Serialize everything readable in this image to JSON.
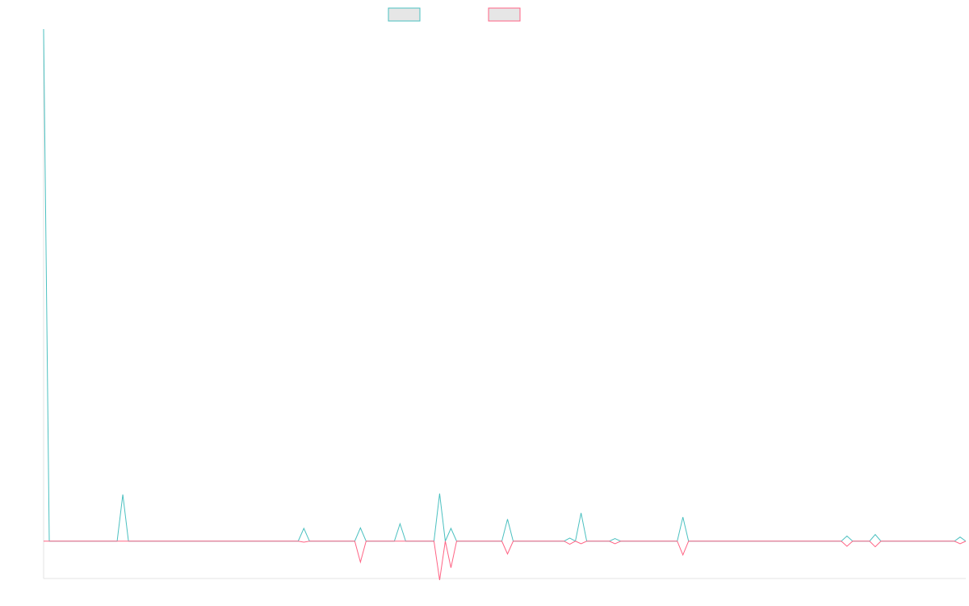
{
  "chart_data": {
    "type": "line",
    "series": [
      {
        "color": "#4bc0c0",
        "values": [
          100,
          0,
          0,
          0,
          0,
          0,
          0,
          0,
          0,
          0,
          0,
          0,
          0,
          0,
          9.1,
          0,
          0,
          0,
          0,
          0,
          0,
          0,
          0,
          0,
          0,
          0,
          0,
          0,
          0,
          0,
          0,
          0,
          0,
          0,
          0,
          0,
          0,
          0,
          0,
          0,
          0,
          0,
          0,
          0,
          0,
          0,
          2.5,
          0,
          0,
          0,
          0,
          0,
          0,
          0,
          0,
          0,
          2.6,
          0,
          0,
          0,
          0,
          0,
          0,
          3.4,
          0,
          0,
          0,
          0,
          0,
          0,
          9.3,
          0,
          2.5,
          0,
          0,
          0,
          0,
          0,
          0,
          0,
          0,
          0,
          4.3,
          0,
          0,
          0,
          0,
          0,
          0,
          0,
          0,
          0,
          0,
          0.6,
          0,
          5.5,
          0,
          0,
          0,
          0,
          0,
          0.5,
          0,
          0,
          0,
          0,
          0,
          0,
          0,
          0,
          0,
          0,
          0,
          4.7,
          0,
          0,
          0,
          0,
          0,
          0,
          0,
          0,
          0,
          0,
          0,
          0,
          0,
          0,
          0,
          0,
          0,
          0,
          0,
          0,
          0,
          0,
          0,
          0,
          0,
          0,
          0,
          0,
          1,
          0,
          0,
          0,
          0,
          1.3,
          0,
          0,
          0,
          0,
          0,
          0,
          0,
          0,
          0,
          0,
          0,
          0,
          0,
          0,
          0.8,
          0
        ]
      },
      {
        "color": "#ff6384",
        "values": [
          0,
          0,
          0,
          0,
          0,
          0,
          0,
          0,
          0,
          0,
          0,
          0,
          0,
          0,
          0,
          0,
          0,
          0,
          0,
          0,
          0,
          0,
          0,
          0,
          0,
          0,
          0,
          0,
          0,
          0,
          0,
          0,
          0,
          0,
          0,
          0,
          0,
          0,
          0,
          0,
          0,
          0,
          0,
          0,
          0,
          0,
          -0.2,
          0,
          0,
          0,
          0,
          0,
          0,
          0,
          0,
          0,
          -4.1,
          0,
          0,
          0,
          0,
          0,
          0,
          0,
          0,
          0,
          0,
          0,
          0,
          0,
          -7.6,
          0,
          -5.2,
          0,
          0,
          0,
          0,
          0,
          0,
          0,
          0,
          0,
          -2.5,
          0,
          0,
          0,
          0,
          0,
          0,
          0,
          0,
          0,
          0,
          -0.6,
          0,
          -0.5,
          0,
          0,
          0,
          0,
          0,
          -0.5,
          0,
          0,
          0,
          0,
          0,
          0,
          0,
          0,
          0,
          0,
          0,
          -2.7,
          0,
          0,
          0,
          0,
          0,
          0,
          0,
          0,
          0,
          0,
          0,
          0,
          0,
          0,
          0,
          0,
          0,
          0,
          0,
          0,
          0,
          0,
          0,
          0,
          0,
          0,
          0,
          0,
          -1,
          0,
          0,
          0,
          0,
          -1.1,
          0,
          0,
          0,
          0,
          0,
          0,
          0,
          0,
          0,
          0,
          0,
          0,
          0,
          0,
          -0.5,
          0
        ]
      }
    ],
    "ylim": [
      -7.3,
      100
    ]
  }
}
